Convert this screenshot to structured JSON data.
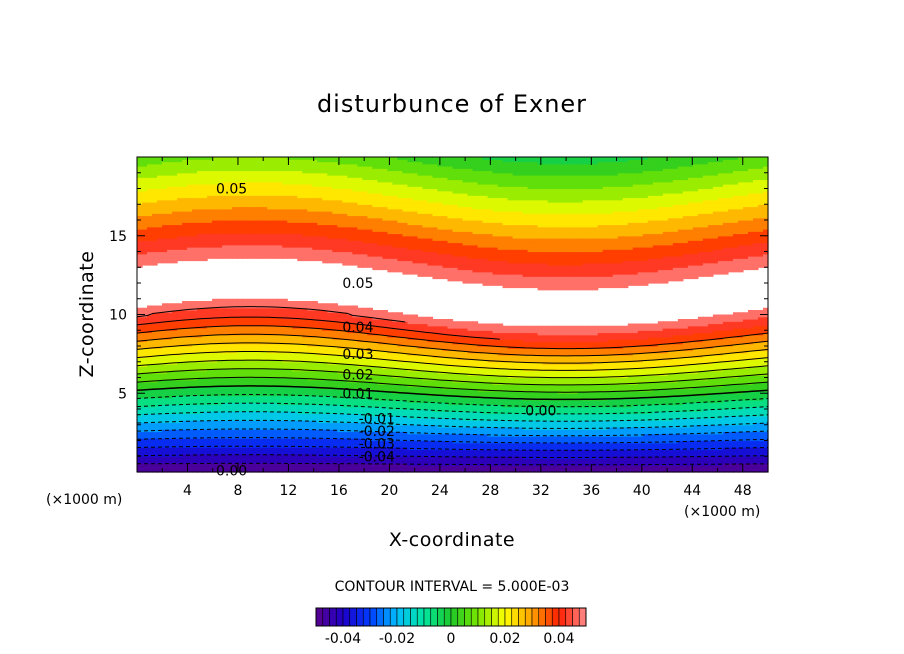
{
  "chart_data": {
    "type": "contour",
    "title": "disturbunce of Exner",
    "xlabel": "X-coordinate",
    "ylabel": "Z-coordinate",
    "x_unit_label": "(×1000 m)",
    "x_unit_label_right": "(×1000 m)",
    "xlim": [
      0,
      50
    ],
    "ylim": [
      0,
      20
    ],
    "x_ticks": [
      4,
      8,
      12,
      16,
      20,
      24,
      28,
      32,
      36,
      40,
      44,
      48
    ],
    "y_ticks": [
      5,
      10,
      15
    ],
    "contour_interval_text": "CONTOUR INTERVAL = 5.000E-03",
    "levels": [
      -0.045,
      -0.04,
      -0.035,
      -0.03,
      -0.025,
      -0.02,
      -0.015,
      -0.01,
      -0.005,
      0.0,
      0.005,
      0.01,
      0.015,
      0.02,
      0.025,
      0.03,
      0.035,
      0.04,
      0.045,
      0.05
    ],
    "contour_labels": [
      {
        "text": "0.05",
        "x": 7.5,
        "z": 18.0
      },
      {
        "text": "0.05",
        "x": 17.5,
        "z": 12.0
      },
      {
        "text": "0.04",
        "x": 17.5,
        "z": 9.2
      },
      {
        "text": "0.03",
        "x": 17.5,
        "z": 7.5
      },
      {
        "text": "0.02",
        "x": 17.5,
        "z": 6.2
      },
      {
        "text": "0.01",
        "x": 17.5,
        "z": 5.0
      },
      {
        "text": "0.00",
        "x": 32.0,
        "z": 3.9
      },
      {
        "text": "-0.01",
        "x": 19.0,
        "z": 3.4
      },
      {
        "text": "-0.02",
        "x": 19.0,
        "z": 2.6
      },
      {
        "text": "-0.03",
        "x": 19.0,
        "z": 1.8
      },
      {
        "text": "-0.04",
        "x": 19.0,
        "z": 1.0
      },
      {
        "text": "0.00",
        "x": 7.5,
        "z": 0.1
      }
    ],
    "colorbar": {
      "range": [
        -0.05,
        0.05
      ],
      "tick_values": [
        -0.04,
        -0.02,
        0,
        0.02,
        0.04
      ],
      "tick_labels": [
        "-0.04",
        "-0.02",
        "0",
        "0.02",
        "0.04"
      ]
    },
    "colors": {
      "purple": "#6a0aa8",
      "blue": "#1010e0",
      "cyan": "#00e0ff",
      "green": "#00c030",
      "yellow": "#ffff00",
      "orange": "#ff9000",
      "red": "#ff0000",
      "pink": "#ff9090"
    }
  }
}
